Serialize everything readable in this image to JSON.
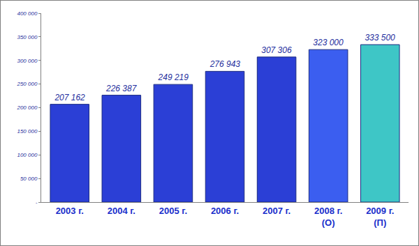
{
  "chart_data": {
    "type": "bar",
    "categories": [
      "2003 г.",
      "2004 г.",
      "2005 г.",
      "2006 г.",
      "2007 г.",
      "2008 г.\n(О)",
      "2009 г.\n(П)"
    ],
    "values": [
      207162,
      226387,
      249219,
      276943,
      307306,
      323000,
      333500
    ],
    "value_labels": [
      "207 162",
      "226 387",
      "249 219",
      "276 943",
      "307 306",
      "323 000",
      "333 500"
    ],
    "colors": [
      "#2b3fd6",
      "#2b3fd6",
      "#2b3fd6",
      "#2b3fd6",
      "#2b3fd6",
      "#3b5ef0",
      "#3ec6c6"
    ],
    "ylim": [
      0,
      400000
    ],
    "yticks": [
      {
        "value": 0,
        "label": "-"
      },
      {
        "value": 50000,
        "label": "50 000"
      },
      {
        "value": 100000,
        "label": "100 000"
      },
      {
        "value": 150000,
        "label": "150 000"
      },
      {
        "value": 200000,
        "label": "200 000"
      },
      {
        "value": 250000,
        "label": "250 000"
      },
      {
        "value": 300000,
        "label": "300 000"
      },
      {
        "value": 350000,
        "label": "350 000"
      },
      {
        "value": 400000,
        "label": "400 000"
      }
    ],
    "grid": false,
    "data_labels": true
  }
}
